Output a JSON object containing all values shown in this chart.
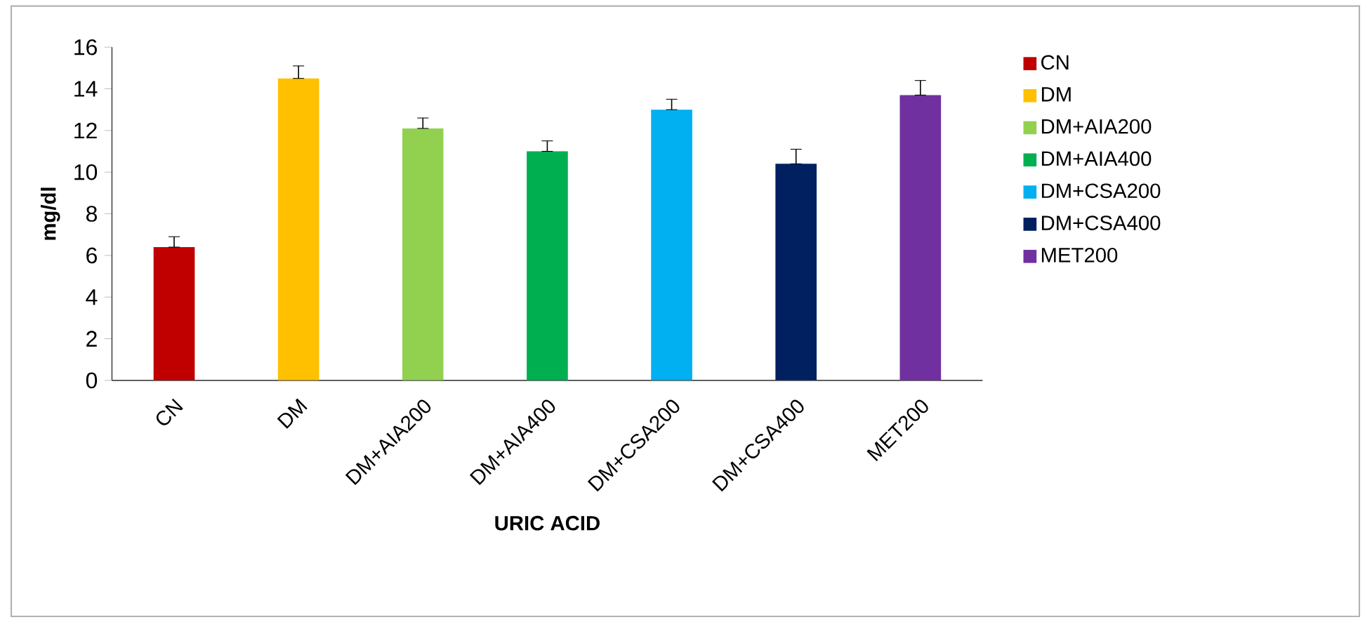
{
  "chart_data": {
    "type": "bar",
    "xlabel": "URIC ACID",
    "ylabel": "mg/dl",
    "categories": [
      "CN",
      "DM",
      "DM+AIA200",
      "DM+AIA400",
      "DM+CSA200",
      "DM+CSA400",
      "MET200"
    ],
    "series": [
      {
        "name": "CN",
        "color": "#c00000",
        "values": [
          6.4,
          null,
          null,
          null,
          null,
          null,
          null
        ],
        "errors": [
          [
            6.4,
            6.9
          ],
          null,
          null,
          null,
          null,
          null,
          null
        ]
      },
      {
        "name": "DM",
        "color": "#ffc000",
        "values": [
          null,
          14.5,
          null,
          null,
          null,
          null,
          null
        ],
        "errors": [
          null,
          [
            14.5,
            15.1
          ],
          null,
          null,
          null,
          null,
          null
        ]
      },
      {
        "name": "DM+AIA200",
        "color": "#92d050",
        "values": [
          null,
          null,
          12.1,
          null,
          null,
          null,
          null
        ],
        "errors": [
          null,
          null,
          [
            12.1,
            12.6
          ],
          null,
          null,
          null,
          null
        ]
      },
      {
        "name": "DM+AIA400",
        "color": "#00b050",
        "values": [
          null,
          null,
          null,
          11.0,
          null,
          null,
          null
        ],
        "errors": [
          null,
          null,
          null,
          [
            11.0,
            11.5
          ],
          null,
          null,
          null
        ]
      },
      {
        "name": "DM+CSA200",
        "color": "#00b0f0",
        "values": [
          null,
          null,
          null,
          null,
          13.0,
          null,
          null
        ],
        "errors": [
          null,
          null,
          null,
          null,
          [
            13.0,
            13.5
          ],
          null,
          null
        ]
      },
      {
        "name": "DM+CSA400",
        "color": "#002060",
        "values": [
          null,
          null,
          null,
          null,
          null,
          10.4,
          null
        ],
        "errors": [
          null,
          null,
          null,
          null,
          null,
          [
            10.4,
            11.1
          ],
          null
        ]
      },
      {
        "name": "MET200",
        "color": "#7030a0",
        "values": [
          null,
          null,
          null,
          null,
          null,
          null,
          13.7
        ],
        "errors": [
          null,
          null,
          null,
          null,
          null,
          null,
          [
            13.7,
            14.4
          ]
        ]
      }
    ],
    "ylim": [
      0,
      16
    ],
    "yticks": [
      0,
      2,
      4,
      6,
      8,
      10,
      12,
      14,
      16
    ],
    "grid": false,
    "legend": "right"
  }
}
